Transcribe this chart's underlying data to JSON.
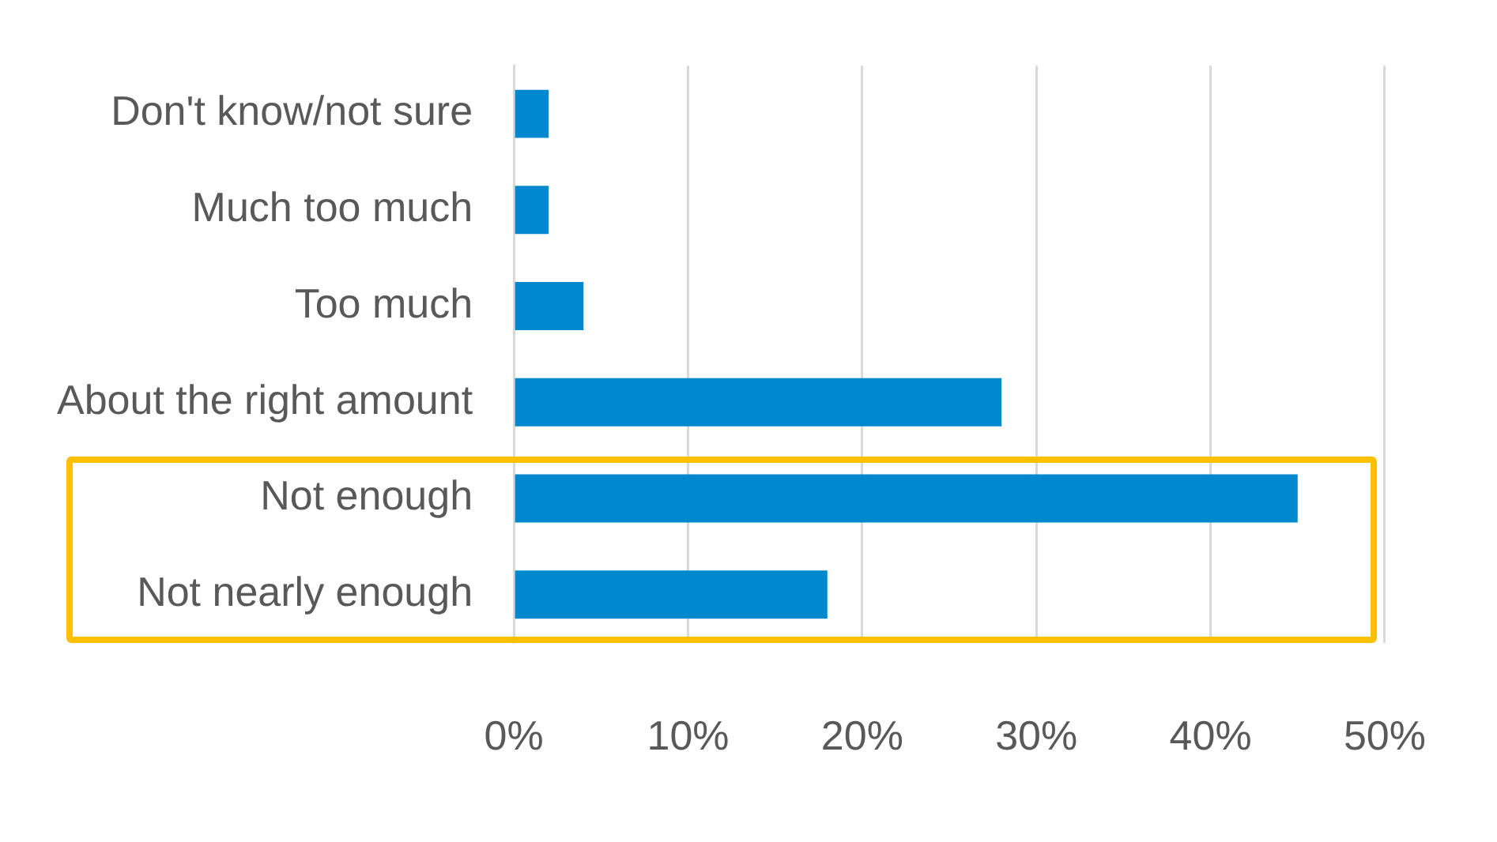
{
  "chart_data": {
    "type": "bar",
    "orientation": "horizontal",
    "categories": [
      "Don't know/not sure",
      "Much too much",
      "Too much",
      "About the right amount",
      "Not enough",
      "Not nearly enough"
    ],
    "values": [
      2,
      2,
      4,
      28,
      45,
      18
    ],
    "color": "#0088cf",
    "xlim": [
      0,
      50
    ],
    "xticks": [
      {
        "value": 0,
        "label": "0%"
      },
      {
        "value": 10,
        "label": "10%"
      },
      {
        "value": 20,
        "label": "20%"
      },
      {
        "value": 30,
        "label": "30%"
      },
      {
        "value": 40,
        "label": "40%"
      },
      {
        "value": 50,
        "label": "50%"
      }
    ],
    "grid": "x",
    "legend": false
  }
}
